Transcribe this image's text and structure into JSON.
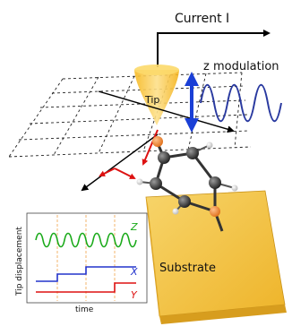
{
  "labels": {
    "current": "Current I",
    "z_modulation": "z modulation",
    "tip": "Tip",
    "substrate": "Substrate"
  },
  "inset": {
    "y_axis_label": "Tip displacement",
    "x_axis_label": "time",
    "traces": [
      {
        "name": "Z",
        "color": "#1aaa1a"
      },
      {
        "name": "X",
        "color": "#2233cc"
      },
      {
        "name": "Y",
        "color": "#dd1111"
      }
    ]
  },
  "colors": {
    "tip": "#f7c23c",
    "substrate": "#f2c33a",
    "z_arrow": "#1a3fd6",
    "wave": "#2233aa",
    "red_arrow": "#dd1111",
    "molecule": "#3a3a3a",
    "heteroatom": "#f08a3a"
  }
}
